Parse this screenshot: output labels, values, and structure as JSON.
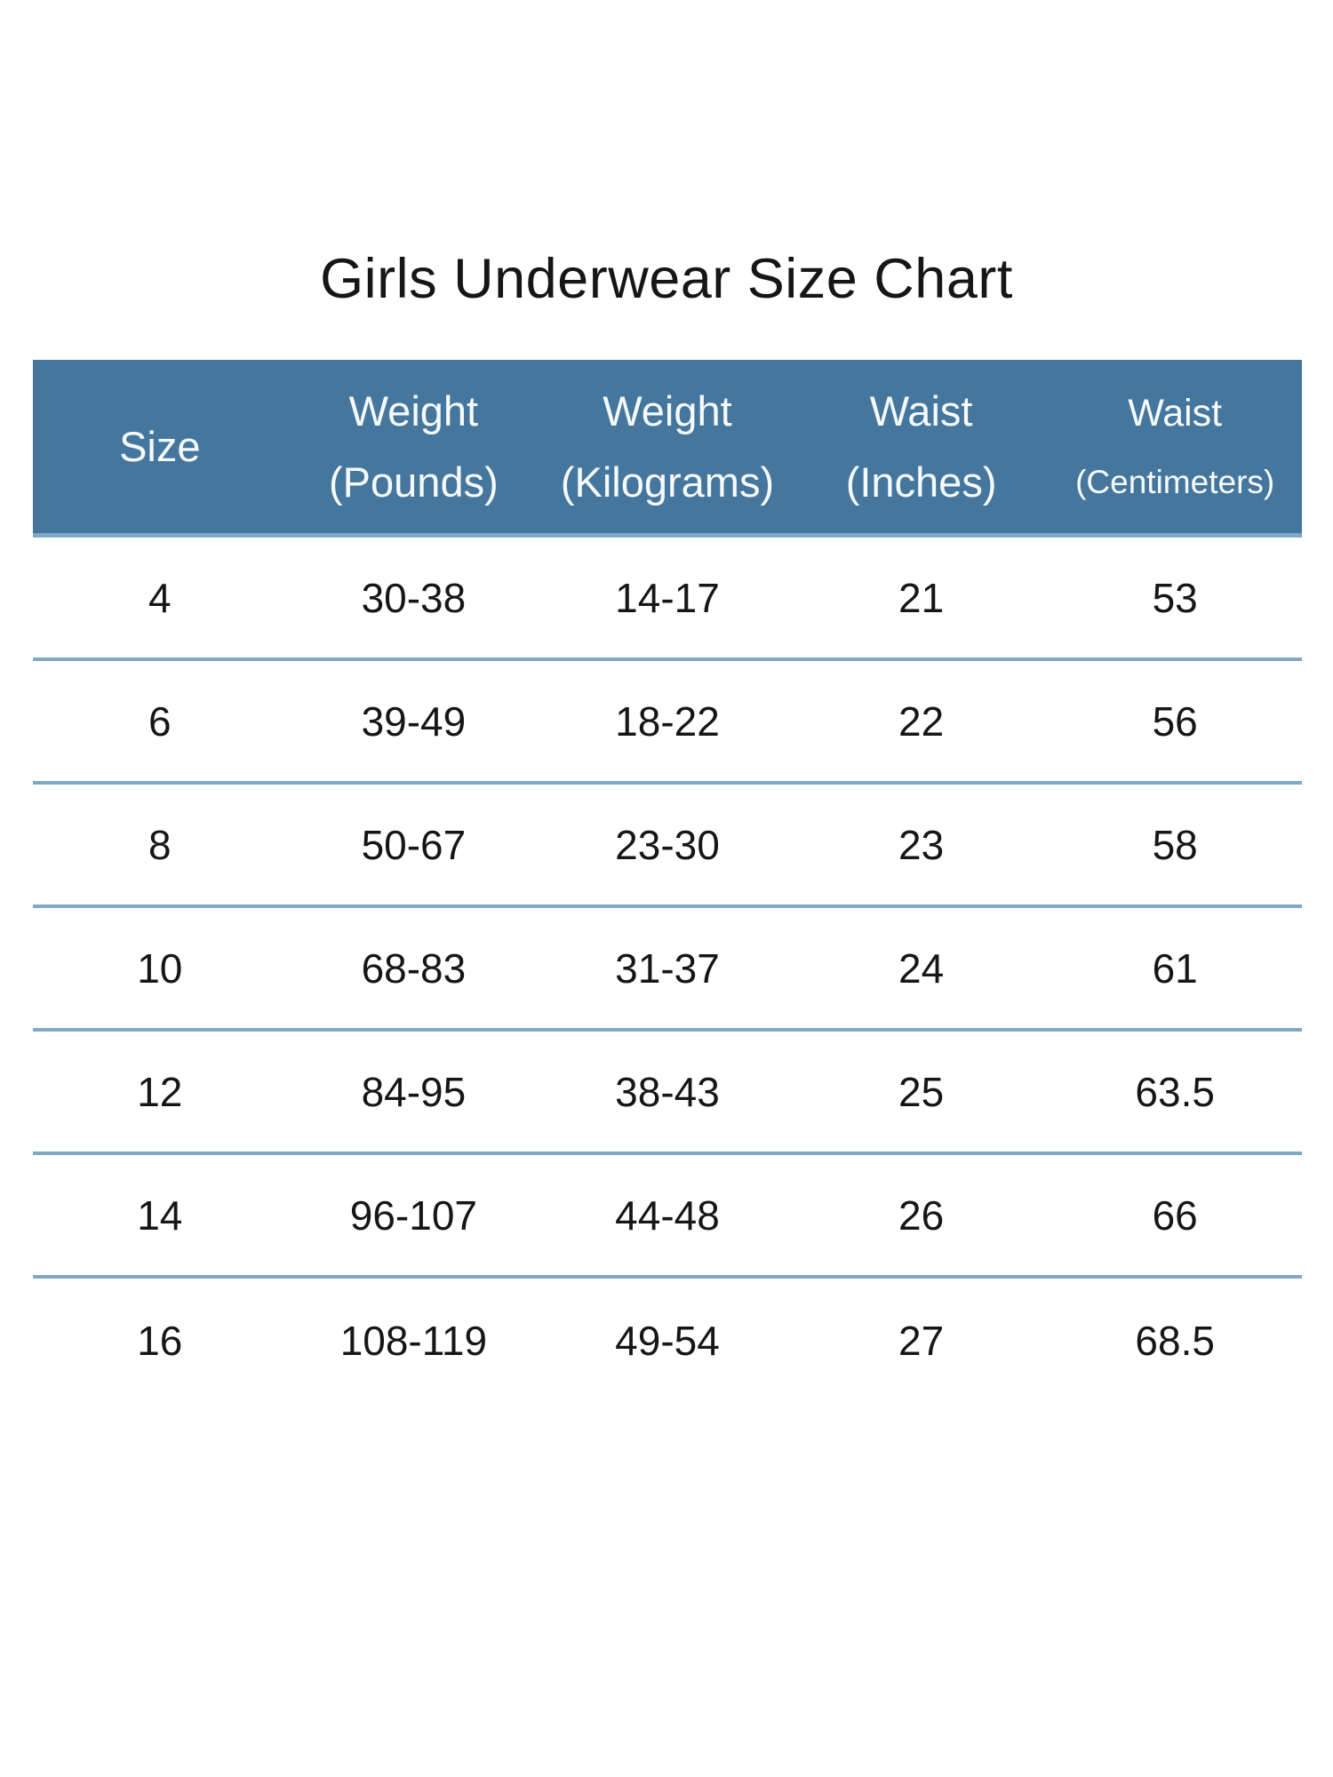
{
  "page": {
    "title": "Girls Underwear Size Chart"
  },
  "colors": {
    "header_bg": "#45779E",
    "header_text": "#F7FAFC",
    "divider": "#7FA8C6",
    "body_text": "#161616",
    "title_text": "#161616"
  },
  "table": {
    "columns": [
      {
        "line1": "Size",
        "line2": ""
      },
      {
        "line1": "Weight",
        "line2": "(Pounds)"
      },
      {
        "line1": "Weight",
        "line2": "(Kilograms)"
      },
      {
        "line1": "Waist",
        "line2": "(Inches)"
      },
      {
        "line1": "Waist",
        "line2": "(Centimeters)"
      }
    ],
    "rows": [
      [
        "4",
        "30-38",
        "14-17",
        "21",
        "53"
      ],
      [
        "6",
        "39-49",
        "18-22",
        "22",
        "56"
      ],
      [
        "8",
        "50-67",
        "23-30",
        "23",
        "58"
      ],
      [
        "10",
        "68-83",
        "31-37",
        "24",
        "61"
      ],
      [
        "12",
        "84-95",
        "38-43",
        "25",
        "63.5"
      ],
      [
        "14",
        "96-107",
        "44-48",
        "26",
        "66"
      ],
      [
        "16",
        "108-119",
        "49-54",
        "27",
        "68.5"
      ]
    ]
  }
}
